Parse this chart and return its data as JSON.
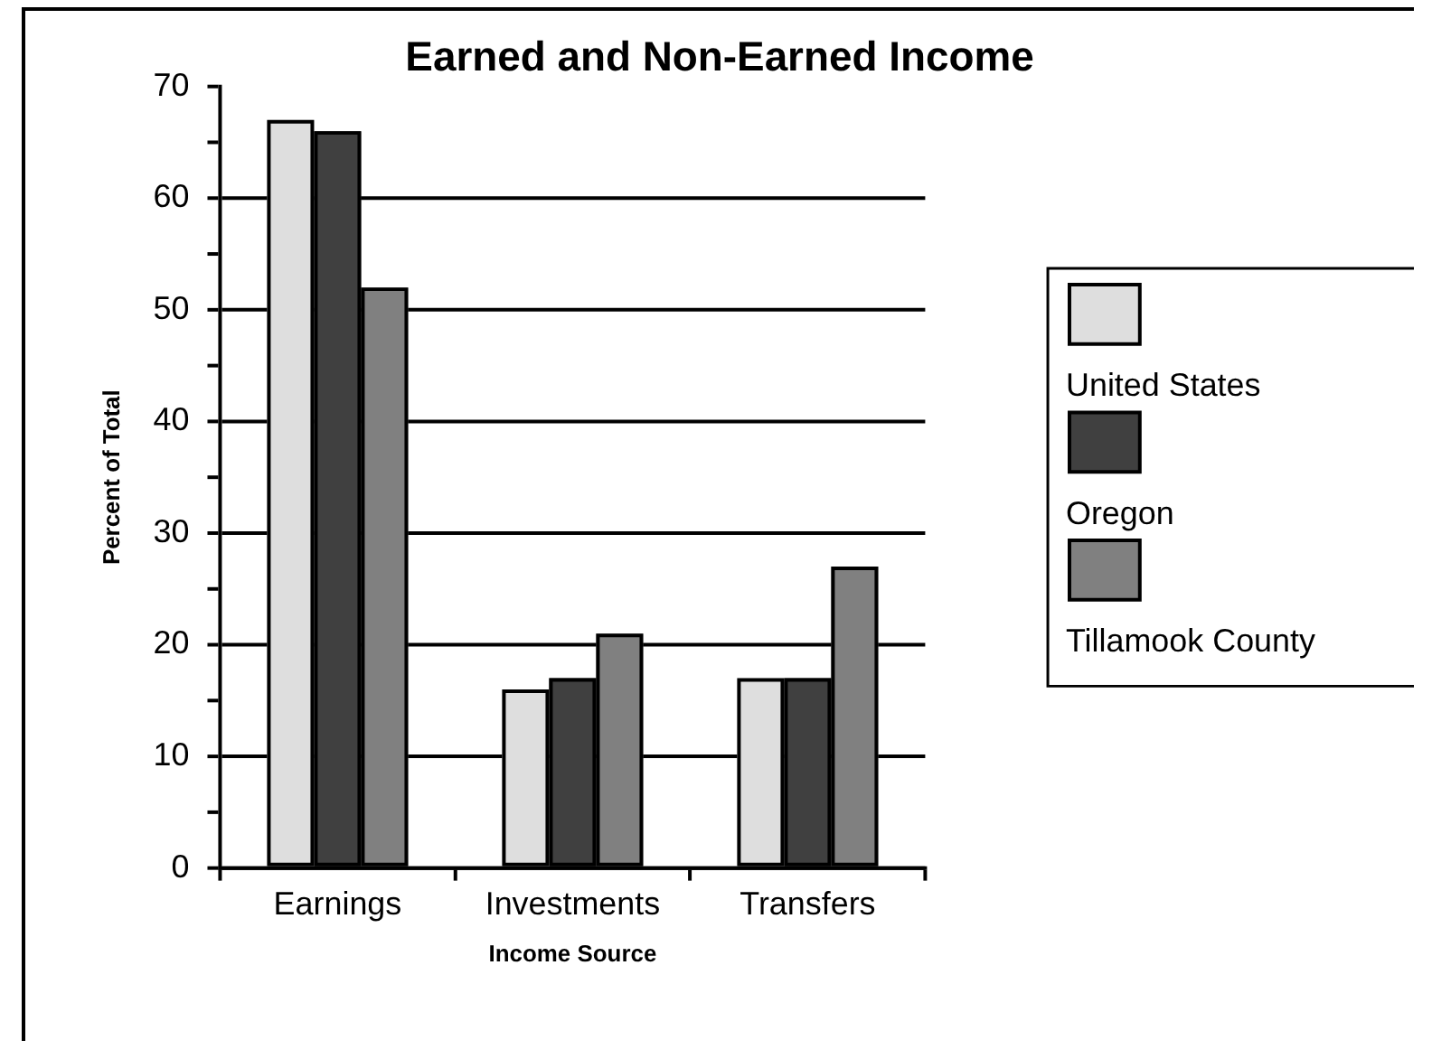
{
  "chart_data": {
    "type": "bar",
    "title": "Earned and Non-Earned Income",
    "xlabel": "Income Source",
    "ylabel": "Percent of Total",
    "categories": [
      "Earnings",
      "Investments",
      "Transfers"
    ],
    "series": [
      {
        "name": "United States",
        "color": "#dedede",
        "values": [
          67,
          16,
          17
        ]
      },
      {
        "name": "Oregon",
        "color": "#404040",
        "values": [
          66,
          17,
          17
        ]
      },
      {
        "name": "Tillamook County",
        "color": "#808080",
        "values": [
          52,
          21,
          27
        ]
      }
    ],
    "ylim": [
      0,
      70
    ],
    "yticks": [
      0,
      {
        "value": 5,
        "label": null
      },
      10,
      {
        "value": 15,
        "label": null
      },
      20,
      {
        "value": 25,
        "label": null
      },
      30,
      {
        "value": 35,
        "label": null
      },
      40,
      {
        "value": 45,
        "label": null
      },
      50,
      {
        "value": 55,
        "label": null
      },
      60,
      {
        "value": 65,
        "label": null
      },
      70
    ],
    "grid": "y",
    "legend": "right"
  }
}
